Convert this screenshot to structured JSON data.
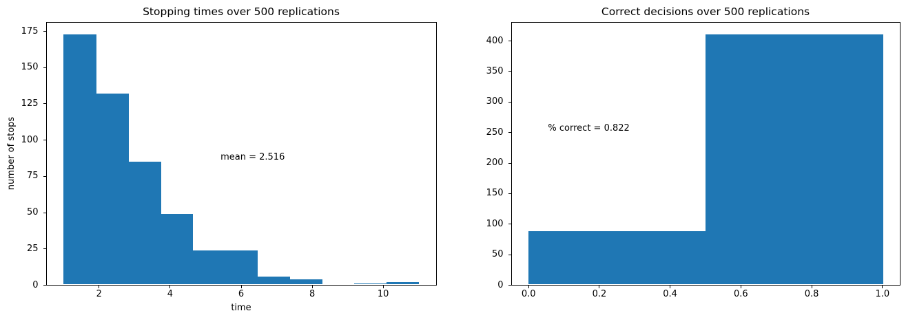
{
  "figure": {
    "background_color": "#ffffff",
    "bar_color": "#1f77b4",
    "axis_color": "#000000",
    "text_color": "#000000"
  },
  "chart_data": [
    {
      "type": "bar",
      "subtype": "histogram",
      "title": "Stopping times over 500 replications",
      "xlabel": "time",
      "ylabel": "number of stops",
      "bin_edges": [
        1.0,
        1.909,
        2.818,
        3.727,
        4.636,
        5.545,
        6.455,
        7.364,
        8.273,
        9.182,
        10.091,
        11.0
      ],
      "counts": [
        173,
        132,
        85,
        49,
        24,
        24,
        6,
        4,
        0,
        1,
        2
      ],
      "xlim": [
        0.5,
        11.5
      ],
      "ylim": [
        0,
        181.65
      ],
      "xticks": [
        2,
        4,
        6,
        8,
        10
      ],
      "xtick_labels": [
        "2",
        "4",
        "6",
        "8",
        "10"
      ],
      "yticks": [
        0,
        25,
        50,
        75,
        100,
        125,
        150,
        175
      ],
      "ytick_labels": [
        "0",
        "25",
        "50",
        "75",
        "100",
        "125",
        "150",
        "175"
      ],
      "grid": false,
      "legend": null,
      "annotation": {
        "text": "mean = 2.516",
        "x": 5.42,
        "y": 88
      }
    },
    {
      "type": "bar",
      "subtype": "histogram",
      "title": "Correct decisions over 500 replications",
      "xlabel": "",
      "ylabel": "",
      "bin_edges": [
        0.0,
        0.5,
        1.0
      ],
      "counts": [
        89,
        411
      ],
      "xlim": [
        -0.05,
        1.05
      ],
      "ylim": [
        0,
        431.55
      ],
      "xticks": [
        0.0,
        0.2,
        0.4,
        0.6,
        0.8,
        1.0
      ],
      "xtick_labels": [
        "0.0",
        "0.2",
        "0.4",
        "0.6",
        "0.8",
        "1.0"
      ],
      "yticks": [
        0,
        50,
        100,
        150,
        200,
        250,
        300,
        350,
        400
      ],
      "ytick_labels": [
        "0",
        "50",
        "100",
        "150",
        "200",
        "250",
        "300",
        "350",
        "400"
      ],
      "grid": false,
      "legend": null,
      "annotation": {
        "text": "% correct = 0.822",
        "x": 0.055,
        "y": 256
      }
    }
  ]
}
